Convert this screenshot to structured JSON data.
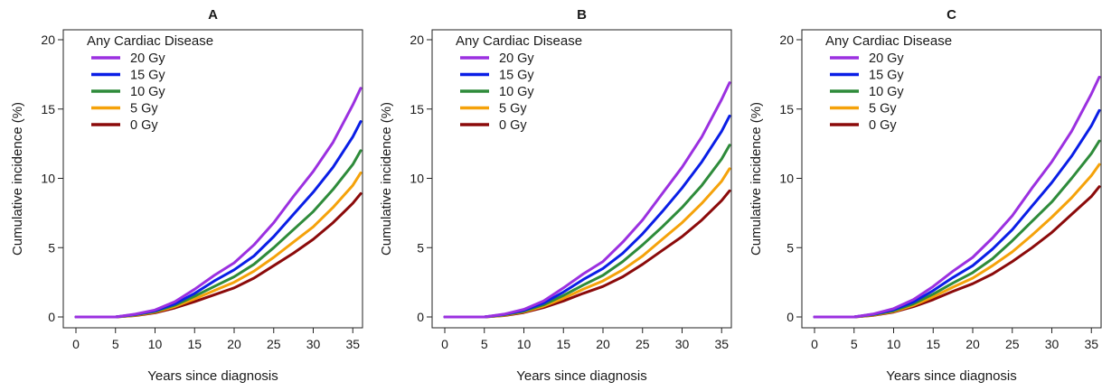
{
  "chart_data": [
    {
      "type": "line",
      "title": "A",
      "xlabel": "Years since diagnosis",
      "ylabel": "Cumulative incidence (%)",
      "xlim": [
        0,
        36
      ],
      "ylim": [
        0,
        20
      ],
      "xticks": [
        0,
        5,
        10,
        15,
        20,
        25,
        30,
        35
      ],
      "yticks": [
        0,
        5,
        10,
        15,
        20
      ],
      "legend": {
        "title": "Any Cardiac Disease",
        "position": "top-left"
      },
      "series": [
        {
          "name": "20 Gy",
          "color": "#9b30e0",
          "x": [
            0,
            5,
            7.5,
            10,
            12.5,
            15,
            17.5,
            20,
            22.5,
            25,
            27.5,
            30,
            32.5,
            35,
            36
          ],
          "y": [
            0,
            0,
            0.2,
            0.5,
            1.1,
            2.0,
            3.0,
            3.9,
            5.2,
            6.8,
            8.7,
            10.5,
            12.6,
            15.3,
            16.5
          ]
        },
        {
          "name": "15 Gy",
          "color": "#0a1ee6",
          "x": [
            0,
            5,
            7.5,
            10,
            12.5,
            15,
            17.5,
            20,
            22.5,
            25,
            27.5,
            30,
            32.5,
            35,
            36
          ],
          "y": [
            0,
            0,
            0.18,
            0.45,
            0.95,
            1.7,
            2.6,
            3.4,
            4.4,
            5.8,
            7.4,
            9.0,
            10.8,
            13.0,
            14.1
          ]
        },
        {
          "name": "10 Gy",
          "color": "#2e8b3a",
          "x": [
            0,
            5,
            7.5,
            10,
            12.5,
            15,
            17.5,
            20,
            22.5,
            25,
            27.5,
            30,
            32.5,
            35,
            36
          ],
          "y": [
            0,
            0,
            0.15,
            0.4,
            0.85,
            1.5,
            2.2,
            2.9,
            3.8,
            5.0,
            6.3,
            7.6,
            9.2,
            11.0,
            12.0
          ]
        },
        {
          "name": "5 Gy",
          "color": "#f5a20a",
          "x": [
            0,
            5,
            7.5,
            10,
            12.5,
            15,
            17.5,
            20,
            22.5,
            25,
            27.5,
            30,
            32.5,
            35,
            36
          ],
          "y": [
            0,
            0,
            0.12,
            0.35,
            0.75,
            1.3,
            1.9,
            2.5,
            3.3,
            4.3,
            5.4,
            6.5,
            7.9,
            9.5,
            10.4
          ]
        },
        {
          "name": "0 Gy",
          "color": "#8b0a0a",
          "x": [
            0,
            5,
            7.5,
            10,
            12.5,
            15,
            17.5,
            20,
            22.5,
            25,
            27.5,
            30,
            32.5,
            35,
            36
          ],
          "y": [
            0,
            0,
            0.1,
            0.3,
            0.65,
            1.1,
            1.6,
            2.1,
            2.8,
            3.7,
            4.6,
            5.6,
            6.8,
            8.2,
            8.9
          ]
        }
      ]
    },
    {
      "type": "line",
      "title": "B",
      "xlabel": "Years since diagnosis",
      "ylabel": "Cumulative incidence (%)",
      "xlim": [
        0,
        36
      ],
      "ylim": [
        0,
        20
      ],
      "xticks": [
        0,
        5,
        10,
        15,
        20,
        25,
        30,
        35
      ],
      "yticks": [
        0,
        5,
        10,
        15,
        20
      ],
      "legend": {
        "title": "Any Cardiac Disease",
        "position": "top-left"
      },
      "series": [
        {
          "name": "20 Gy",
          "color": "#9b30e0",
          "x": [
            0,
            5,
            7.5,
            10,
            12.5,
            15,
            17.5,
            20,
            22.5,
            25,
            27.5,
            30,
            32.5,
            35,
            36
          ],
          "y": [
            0,
            0,
            0.2,
            0.55,
            1.15,
            2.1,
            3.1,
            4.0,
            5.4,
            7.0,
            8.9,
            10.8,
            13.0,
            15.7,
            16.9
          ]
        },
        {
          "name": "15 Gy",
          "color": "#0a1ee6",
          "x": [
            0,
            5,
            7.5,
            10,
            12.5,
            15,
            17.5,
            20,
            22.5,
            25,
            27.5,
            30,
            32.5,
            35,
            36
          ],
          "y": [
            0,
            0,
            0.18,
            0.48,
            1.0,
            1.8,
            2.7,
            3.5,
            4.6,
            6.0,
            7.6,
            9.3,
            11.2,
            13.4,
            14.5
          ]
        },
        {
          "name": "10 Gy",
          "color": "#2e8b3a",
          "x": [
            0,
            5,
            7.5,
            10,
            12.5,
            15,
            17.5,
            20,
            22.5,
            25,
            27.5,
            30,
            32.5,
            35,
            36
          ],
          "y": [
            0,
            0,
            0.15,
            0.42,
            0.88,
            1.55,
            2.3,
            3.0,
            4.0,
            5.2,
            6.5,
            7.9,
            9.5,
            11.4,
            12.4
          ]
        },
        {
          "name": "5 Gy",
          "color": "#f5a20a",
          "x": [
            0,
            5,
            7.5,
            10,
            12.5,
            15,
            17.5,
            20,
            22.5,
            25,
            27.5,
            30,
            32.5,
            35,
            36
          ],
          "y": [
            0,
            0,
            0.12,
            0.37,
            0.78,
            1.35,
            2.0,
            2.6,
            3.4,
            4.4,
            5.6,
            6.8,
            8.2,
            9.8,
            10.7
          ]
        },
        {
          "name": "0 Gy",
          "color": "#8b0a0a",
          "x": [
            0,
            5,
            7.5,
            10,
            12.5,
            15,
            17.5,
            20,
            22.5,
            25,
            27.5,
            30,
            32.5,
            35,
            36
          ],
          "y": [
            0,
            0,
            0.1,
            0.32,
            0.68,
            1.15,
            1.7,
            2.2,
            2.9,
            3.8,
            4.8,
            5.8,
            7.0,
            8.4,
            9.1
          ]
        }
      ]
    },
    {
      "type": "line",
      "title": "C",
      "xlabel": "Years since diagnosis",
      "ylabel": "Cumulative incidence (%)",
      "xlim": [
        0,
        36
      ],
      "ylim": [
        0,
        20
      ],
      "xticks": [
        0,
        5,
        10,
        15,
        20,
        25,
        30,
        35
      ],
      "yticks": [
        0,
        5,
        10,
        15,
        20
      ],
      "legend": {
        "title": "Any Cardiac Disease",
        "position": "top-left"
      },
      "series": [
        {
          "name": "20 Gy",
          "color": "#9b30e0",
          "x": [
            0,
            5,
            7.5,
            10,
            12.5,
            15,
            17.5,
            20,
            22.5,
            25,
            27.5,
            30,
            32.5,
            35,
            36
          ],
          "y": [
            0,
            0,
            0.22,
            0.6,
            1.25,
            2.2,
            3.3,
            4.3,
            5.7,
            7.3,
            9.3,
            11.2,
            13.4,
            16.1,
            17.3
          ]
        },
        {
          "name": "15 Gy",
          "color": "#0a1ee6",
          "x": [
            0,
            5,
            7.5,
            10,
            12.5,
            15,
            17.5,
            20,
            22.5,
            25,
            27.5,
            30,
            32.5,
            35,
            36
          ],
          "y": [
            0,
            0,
            0.2,
            0.52,
            1.08,
            1.9,
            2.85,
            3.7,
            4.9,
            6.3,
            8.0,
            9.7,
            11.6,
            13.8,
            14.9
          ]
        },
        {
          "name": "10 Gy",
          "color": "#2e8b3a",
          "x": [
            0,
            5,
            7.5,
            10,
            12.5,
            15,
            17.5,
            20,
            22.5,
            25,
            27.5,
            30,
            32.5,
            35,
            36
          ],
          "y": [
            0,
            0,
            0.17,
            0.45,
            0.95,
            1.65,
            2.45,
            3.2,
            4.2,
            5.5,
            6.9,
            8.3,
            10.0,
            11.8,
            12.7
          ]
        },
        {
          "name": "5 Gy",
          "color": "#f5a20a",
          "x": [
            0,
            5,
            7.5,
            10,
            12.5,
            15,
            17.5,
            20,
            22.5,
            25,
            27.5,
            30,
            32.5,
            35,
            36
          ],
          "y": [
            0,
            0,
            0.14,
            0.4,
            0.84,
            1.45,
            2.15,
            2.8,
            3.7,
            4.7,
            5.9,
            7.2,
            8.6,
            10.2,
            11.0
          ]
        },
        {
          "name": "0 Gy",
          "color": "#8b0a0a",
          "x": [
            0,
            5,
            7.5,
            10,
            12.5,
            15,
            17.5,
            20,
            22.5,
            25,
            27.5,
            30,
            32.5,
            35,
            36
          ],
          "y": [
            0,
            0,
            0.12,
            0.35,
            0.74,
            1.25,
            1.85,
            2.4,
            3.1,
            4.0,
            5.0,
            6.1,
            7.4,
            8.7,
            9.4
          ]
        }
      ]
    }
  ]
}
